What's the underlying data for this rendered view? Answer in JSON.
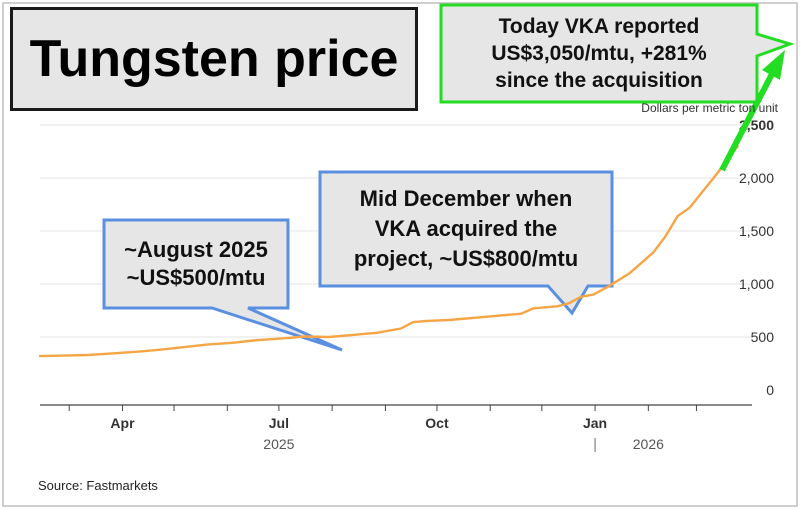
{
  "title": "Tungsten price",
  "units_label": "Dollars per metric ton unit",
  "source": "Source: Fastmarkets",
  "callouts": {
    "august": {
      "lines": [
        "~August 2025",
        "~US$500/mtu"
      ]
    },
    "december": {
      "lines": [
        "Mid December when",
        "VKA acquired the",
        "project, ~US$800/mtu"
      ]
    },
    "today": {
      "lines": [
        "Today VKA reported",
        "US$3,050/mtu, +281%",
        "since the acquisition"
      ]
    }
  },
  "colors": {
    "line": "#f5a545",
    "callout_border": "#5b8fe0",
    "callout_fill": "#e6e6e6",
    "today_border": "#22dd22",
    "today_arrow": "#22dd22",
    "axis": "#444444",
    "grid": "#e6e6e6"
  },
  "chart_data": {
    "type": "line",
    "title": "Tungsten price",
    "ylabel": "Dollars per metric ton unit",
    "xlabel": "",
    "ylim": [
      0,
      2500
    ],
    "xlim": [
      "2025-02-12",
      "2026-03-31"
    ],
    "yticks": [
      {
        "value": 0,
        "label": "0"
      },
      {
        "value": 500,
        "label": "500"
      },
      {
        "value": 1000,
        "label": "1,000"
      },
      {
        "value": 1500,
        "label": "1,500"
      },
      {
        "value": 2000,
        "label": "2,000"
      },
      {
        "value": 2500,
        "label": "2,500"
      }
    ],
    "xticks": [
      {
        "date": "2025-04-01",
        "label": "Apr"
      },
      {
        "date": "2025-07-01",
        "label": "Jul"
      },
      {
        "date": "2025-10-01",
        "label": "Oct"
      },
      {
        "date": "2026-01-01",
        "label": "Jan"
      }
    ],
    "year_labels": [
      {
        "date": "2025-07-01",
        "label": "2025"
      },
      {
        "date": "2026-02-01",
        "label": "2026"
      }
    ],
    "grid": true,
    "legend": "none",
    "series": [
      {
        "color": "#f5a545",
        "x": [
          "2025-02-12",
          "2025-02-26",
          "2025-03-12",
          "2025-03-26",
          "2025-04-09",
          "2025-04-23",
          "2025-05-07",
          "2025-05-21",
          "2025-06-04",
          "2025-06-18",
          "2025-07-02",
          "2025-07-16",
          "2025-07-30",
          "2025-08-13",
          "2025-08-27",
          "2025-09-10",
          "2025-09-17",
          "2025-09-24",
          "2025-10-08",
          "2025-10-22",
          "2025-11-05",
          "2025-11-19",
          "2025-11-26",
          "2025-12-03",
          "2025-12-10",
          "2025-12-17",
          "2025-12-24",
          "2025-12-31",
          "2026-01-07",
          "2026-01-14",
          "2026-01-21",
          "2026-01-28",
          "2026-02-04",
          "2026-02-11",
          "2026-02-18",
          "2026-02-25",
          "2026-03-04",
          "2026-03-11",
          "2026-03-18",
          "2026-03-25"
        ],
        "values": [
          320,
          325,
          330,
          345,
          360,
          380,
          405,
          430,
          445,
          470,
          485,
          505,
          500,
          520,
          540,
          580,
          640,
          650,
          660,
          680,
          700,
          720,
          770,
          780,
          790,
          820,
          880,
          900,
          960,
          1030,
          1100,
          1200,
          1300,
          1450,
          1640,
          1720,
          1860,
          2000,
          2150,
          2300
        ]
      }
    ]
  }
}
